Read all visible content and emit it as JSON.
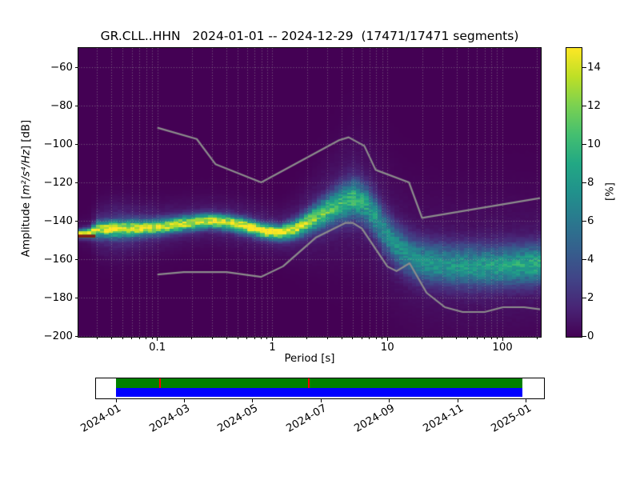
{
  "title": "GR.CLL..HHN   2024-01-01 -- 2024-12-29  (17471/17471 segments)",
  "chart_data": {
    "type": "heatmap",
    "title": "GR.CLL..HHN   2024-01-01 -- 2024-12-29  (17471/17471 segments)",
    "description": "Probabilistic power spectral density (PPSD) of seismic channel GR.CLL..HHN, probability in % (viridis colormap) vs period and amplitude, with Peterson NHNM/NLNM reference noise model curves in gray",
    "xlabel": "Period [s]",
    "ylabel_prefix": "Amplitude [",
    "ylabel_math": "m²/s⁴/Hz",
    "ylabel_suffix": "] [dB]",
    "xscale": "log",
    "xlim": [
      0.0206,
      212
    ],
    "ylim": [
      -200,
      -50
    ],
    "xticks": [
      {
        "v": 0.1,
        "label": "0.1"
      },
      {
        "v": 1,
        "label": "1"
      },
      {
        "v": 10,
        "label": "10"
      },
      {
        "v": 100,
        "label": "100"
      }
    ],
    "yticks": [
      -60,
      -80,
      -100,
      -120,
      -140,
      -160,
      -180,
      -200
    ],
    "grid": {
      "show": true,
      "style": "dotted",
      "color": "rgba(160,160,160,0.65)"
    },
    "colormap": "viridis",
    "background_color": "#440154",
    "viridis_stops": [
      "#440154",
      "#482475",
      "#414487",
      "#355f8d",
      "#2a788e",
      "#21918c",
      "#22a884",
      "#44bf70",
      "#7ad151",
      "#bddf26",
      "#fde725"
    ],
    "colorbar": {
      "label": "[%]",
      "range": [
        0,
        15
      ],
      "ticks": [
        0,
        2,
        4,
        6,
        8,
        10,
        12,
        14
      ]
    },
    "ppsd_ridge_note": "center dB, std-dev dB and peak probability % of the PPSD distribution vs period [s]",
    "ppsd_ridge": [
      {
        "p": 0.0206,
        "db": -146.5,
        "sigma": 1.3,
        "peak": 15.0,
        "halo": 0.05
      },
      {
        "p": 0.026,
        "db": -146.2,
        "sigma": 1.6,
        "peak": 15.0,
        "halo": 0.06
      },
      {
        "p": 0.03,
        "db": -144.3,
        "sigma": 2.6,
        "peak": 12.5,
        "halo": 0.14
      },
      {
        "p": 0.045,
        "db": -144.0,
        "sigma": 2.8,
        "peak": 12.0,
        "halo": 0.2
      },
      {
        "p": 0.07,
        "db": -143.6,
        "sigma": 2.6,
        "peak": 12.5,
        "halo": 0.16
      },
      {
        "p": 0.11,
        "db": -142.8,
        "sigma": 2.5,
        "peak": 13.0,
        "halo": 0.12
      },
      {
        "p": 0.17,
        "db": -141.2,
        "sigma": 2.5,
        "peak": 13.0,
        "halo": 0.1
      },
      {
        "p": 0.28,
        "db": -139.8,
        "sigma": 2.5,
        "peak": 13.0,
        "halo": 0.1
      },
      {
        "p": 0.42,
        "db": -140.8,
        "sigma": 2.5,
        "peak": 13.5,
        "halo": 0.1
      },
      {
        "p": 0.62,
        "db": -143.0,
        "sigma": 2.5,
        "peak": 14.5,
        "halo": 0.1
      },
      {
        "p": 0.9,
        "db": -145.3,
        "sigma": 2.4,
        "peak": 15.0,
        "halo": 0.1
      },
      {
        "p": 1.15,
        "db": -146.0,
        "sigma": 2.4,
        "peak": 15.0,
        "halo": 0.1
      },
      {
        "p": 1.55,
        "db": -144.3,
        "sigma": 3.0,
        "peak": 13.0,
        "halo": 0.11
      },
      {
        "p": 2.1,
        "db": -140.0,
        "sigma": 4.0,
        "peak": 11.0,
        "halo": 0.12
      },
      {
        "p": 2.9,
        "db": -135.0,
        "sigma": 5.0,
        "peak": 10.0,
        "halo": 0.12
      },
      {
        "p": 4.0,
        "db": -130.5,
        "sigma": 6.0,
        "peak": 9.0,
        "halo": 0.13
      },
      {
        "p": 5.0,
        "db": -128.5,
        "sigma": 6.5,
        "peak": 9.0,
        "halo": 0.13
      },
      {
        "p": 6.2,
        "db": -130.5,
        "sigma": 6.5,
        "peak": 8.0,
        "halo": 0.13
      },
      {
        "p": 7.8,
        "db": -137.5,
        "sigma": 7.0,
        "peak": 7.0,
        "halo": 0.13
      },
      {
        "p": 9.5,
        "db": -146.0,
        "sigma": 7.0,
        "peak": 6.5,
        "halo": 0.13
      },
      {
        "p": 12,
        "db": -153.0,
        "sigma": 7.0,
        "peak": 6.5,
        "halo": 0.13
      },
      {
        "p": 16,
        "db": -158.5,
        "sigma": 7.0,
        "peak": 6.5,
        "halo": 0.12
      },
      {
        "p": 22,
        "db": -161.5,
        "sigma": 7.0,
        "peak": 6.8,
        "halo": 0.12
      },
      {
        "p": 35,
        "db": -163.0,
        "sigma": 7.0,
        "peak": 7.0,
        "halo": 0.12
      },
      {
        "p": 60,
        "db": -163.5,
        "sigma": 7.0,
        "peak": 7.3,
        "halo": 0.12
      },
      {
        "p": 110,
        "db": -163.2,
        "sigma": 6.8,
        "peak": 7.8,
        "halo": 0.12
      },
      {
        "p": 212,
        "db": -162.0,
        "sigma": 6.5,
        "peak": 8.2,
        "halo": 0.12
      }
    ],
    "halo_sigma_mult": 3.2,
    "noise_models": {
      "color": "#8c8c8c",
      "nhnm": [
        [
          0.1,
          -91.5
        ],
        [
          0.22,
          -97.4
        ],
        [
          0.32,
          -110.5
        ],
        [
          0.8,
          -120.0
        ],
        [
          3.8,
          -98.0
        ],
        [
          4.6,
          -96.5
        ],
        [
          6.3,
          -101.0
        ],
        [
          7.9,
          -113.5
        ],
        [
          15.4,
          -120.0
        ],
        [
          20.0,
          -138.5
        ],
        [
          212,
          -128.2
        ]
      ],
      "nlnm": [
        [
          0.1,
          -168.0
        ],
        [
          0.17,
          -166.7
        ],
        [
          0.4,
          -166.7
        ],
        [
          0.8,
          -169.2
        ],
        [
          1.24,
          -163.7
        ],
        [
          2.4,
          -148.6
        ],
        [
          4.3,
          -141.1
        ],
        [
          5.0,
          -141.1
        ],
        [
          6.0,
          -144.0
        ],
        [
          10.0,
          -163.8
        ],
        [
          12.0,
          -166.2
        ],
        [
          15.6,
          -162.1
        ],
        [
          21.9,
          -177.5
        ],
        [
          31.6,
          -185.0
        ],
        [
          45.0,
          -187.5
        ],
        [
          70.0,
          -187.5
        ],
        [
          101.0,
          -185.0
        ],
        [
          154.0,
          -185.0
        ],
        [
          212,
          -186.1
        ]
      ]
    },
    "clip_marker": {
      "period_range": [
        0.0206,
        0.029
      ],
      "db_range": [
        -147.2,
        -148.8
      ],
      "color": "#7f1d18"
    }
  },
  "timeline": {
    "start_date": "2024-01-01",
    "end_date": "2024-12-29",
    "tick_labels": [
      "2024-01",
      "2024-03",
      "2024-05",
      "2024-07",
      "2024-09",
      "2024-11",
      "2025-01"
    ],
    "gap_dates": [
      "2024-02-09",
      "2024-06-21"
    ],
    "coverage_color": "#008000",
    "extent_color": "#0000ff",
    "gap_color": "#ff0000"
  }
}
